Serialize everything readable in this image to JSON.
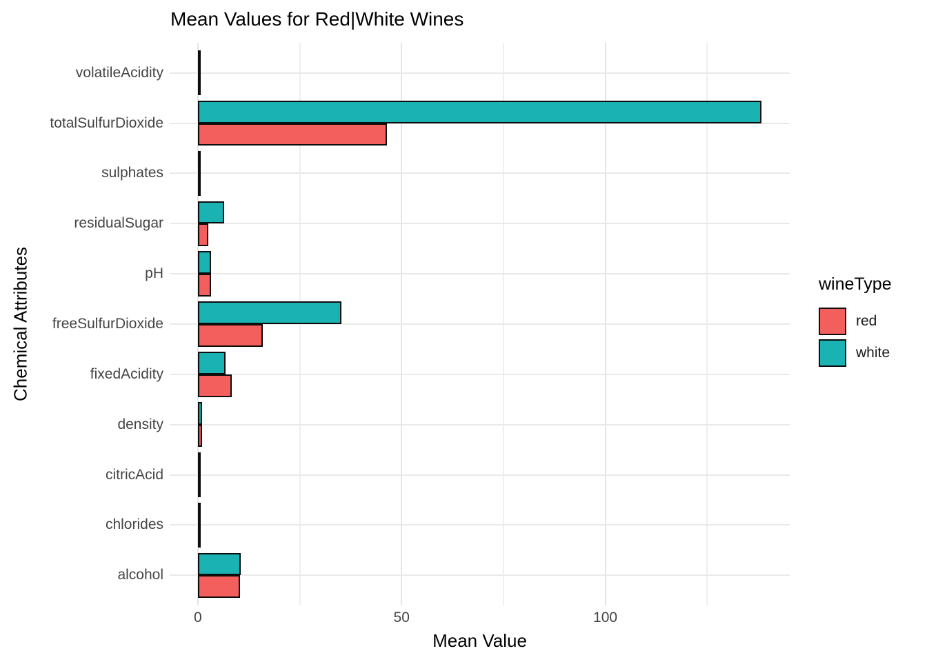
{
  "title": "Mean Values for Red|White Wines",
  "x_axis_title": "Mean Value",
  "y_axis_title": "Chemical Attributes",
  "legend": {
    "title": "wineType",
    "items": [
      {
        "label": "red",
        "color": "#F25F5C"
      },
      {
        "label": "white",
        "color": "#1AB2B2"
      }
    ]
  },
  "chart_data": {
    "type": "bar",
    "orientation": "horizontal",
    "title": "Mean Values for Red|White Wines",
    "xlabel": "Mean Value",
    "ylabel": "Chemical Attributes",
    "categories": [
      "volatileAcidity",
      "totalSulfurDioxide",
      "sulphates",
      "residualSugar",
      "pH",
      "freeSulfurDioxide",
      "fixedAcidity",
      "density",
      "citricAcid",
      "chlorides",
      "alcohol"
    ],
    "series": [
      {
        "name": "white",
        "color": "#1AB2B2",
        "values": [
          0.28,
          138.36,
          0.49,
          6.39,
          3.19,
          35.31,
          6.85,
          0.99,
          0.33,
          0.05,
          10.51
        ]
      },
      {
        "name": "red",
        "color": "#F25F5C",
        "values": [
          0.53,
          46.47,
          0.66,
          2.54,
          3.31,
          15.87,
          8.32,
          1.0,
          0.27,
          0.09,
          10.42
        ]
      }
    ],
    "bar_outline_color": "#0d0d0d",
    "xlim": [
      0,
      138.36
    ],
    "x_ticks": [
      0,
      50,
      100
    ],
    "x_minor_ticks": [
      25,
      75,
      125
    ],
    "grid": true,
    "legend_position": "right",
    "group_order_top_to_bottom": [
      "white",
      "red"
    ]
  }
}
